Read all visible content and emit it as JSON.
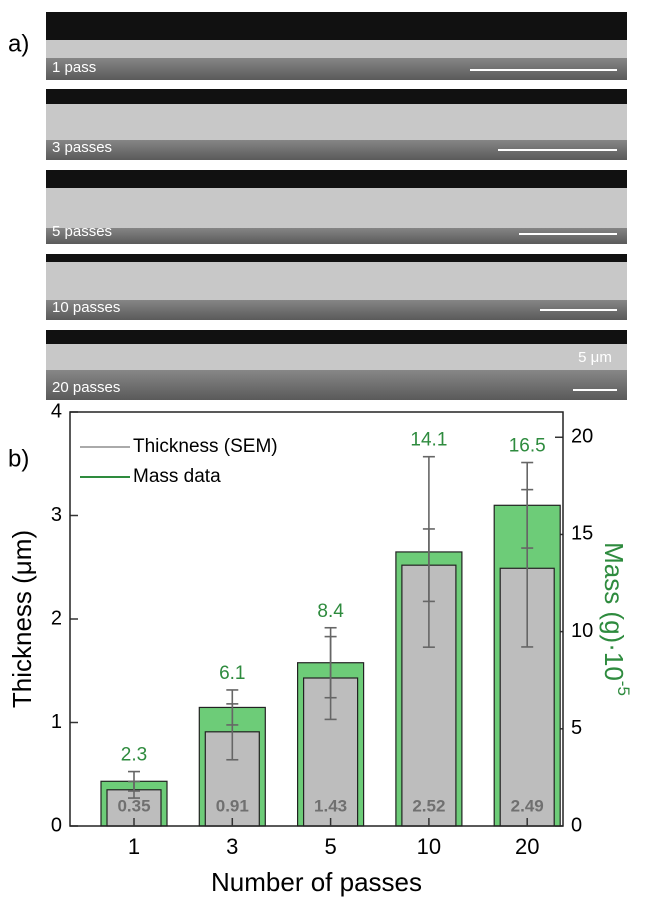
{
  "panel_a": {
    "label": "a)",
    "images": [
      "1 pass",
      "3 passes",
      "5 passes",
      "10 passes",
      "20 passes"
    ],
    "scale_bar": "5 μm"
  },
  "chart_data": {
    "type": "bar",
    "panel_label": "b)",
    "categories": [
      "1",
      "3",
      "5",
      "10",
      "20"
    ],
    "x_label": "Number of passes",
    "y_label": "Thickness (μm)",
    "y2_label": "Mass (g)·10",
    "y2_label_superscript": "-5",
    "series": [
      {
        "name": "Thickness (SEM)",
        "color": "#bdbdbd",
        "label_color": "#707070",
        "values": [
          0.35,
          0.91,
          1.43,
          2.52,
          2.49
        ],
        "errors": [
          0.08,
          0.27,
          0.4,
          0.35,
          0.76
        ]
      },
      {
        "name": "Mass data",
        "color": "#6dcc78",
        "label_color": "#2e8b3e",
        "axis": "y2",
        "values": [
          2.3,
          6.1,
          8.4,
          14.1,
          16.5
        ],
        "errors": [
          0.5,
          0.9,
          1.8,
          4.9,
          2.2
        ]
      }
    ],
    "ylim": [
      0,
      4
    ],
    "yticks": [
      0,
      1,
      2,
      3,
      4
    ],
    "y2lim": [
      0,
      21.3
    ],
    "y2ticks": [
      0,
      5,
      10,
      15,
      20
    ]
  }
}
